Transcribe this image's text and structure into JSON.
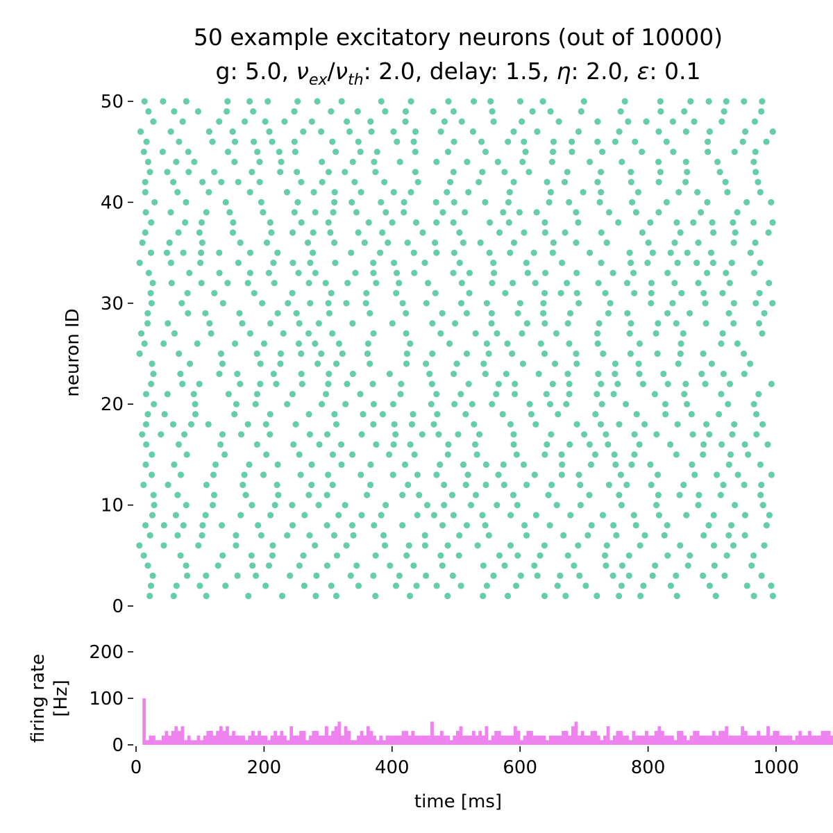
{
  "chart_data": [
    {
      "type": "scatter",
      "panel": "raster",
      "title_line1": "50 example excitatory neurons (out of 10000)",
      "title_line2": {
        "g": "g: 5.0, ",
        "nu": "ν",
        "ex": "ex",
        "slash": "/",
        "nu2": "ν",
        "th": "th",
        "rest1": ": 2.0, delay: 1.5, ",
        "eta": "η",
        "rest2": ": 2.0, ",
        "eps": "ε",
        "rest3": ": 0.1"
      },
      "ylabel": "neuron ID",
      "xlim": [
        0,
        1000
      ],
      "ylim": [
        0,
        50
      ],
      "yticks": [
        0,
        10,
        20,
        30,
        40,
        50
      ],
      "ytick_labels": [
        "0",
        "10",
        "20",
        "30",
        "40",
        "50"
      ],
      "neuron_ids": [
        1,
        50
      ],
      "approx_spike_rate_hz": 22,
      "marker_color": "#66cdaa"
    },
    {
      "type": "bar",
      "panel": "rate",
      "ylabel_line1": "firing rate",
      "ylabel_line2": "[Hz]",
      "xlabel": "time [ms]",
      "xlim": [
        0,
        1000
      ],
      "ylim": [
        0,
        200
      ],
      "xticks": [
        0,
        200,
        400,
        600,
        800,
        1000
      ],
      "xtick_labels": [
        "0",
        "200",
        "400",
        "600",
        "800",
        "1000"
      ],
      "yticks": [
        0,
        100,
        200
      ],
      "ytick_labels": [
        "0",
        "100",
        "200"
      ],
      "bin_width_ms": 5,
      "bin_start_ms": 10,
      "values": [
        100,
        10,
        20,
        20,
        10,
        10,
        20,
        30,
        20,
        30,
        40,
        30,
        40,
        10,
        20,
        10,
        10,
        20,
        10,
        20,
        30,
        30,
        20,
        30,
        40,
        30,
        40,
        20,
        30,
        20,
        20,
        20,
        10,
        20,
        30,
        20,
        30,
        20,
        20,
        10,
        20,
        30,
        20,
        30,
        20,
        10,
        40,
        20,
        20,
        30,
        30,
        10,
        20,
        30,
        30,
        20,
        20,
        40,
        20,
        30,
        40,
        50,
        20,
        40,
        30,
        10,
        10,
        20,
        30,
        20,
        40,
        30,
        20,
        10,
        20,
        10,
        20,
        20,
        20,
        20,
        20,
        30,
        30,
        20,
        30,
        20,
        20,
        20,
        20,
        20,
        50,
        20,
        20,
        30,
        20,
        20,
        10,
        20,
        30,
        40,
        20,
        20,
        20,
        30,
        20,
        30,
        20,
        40,
        10,
        20,
        30,
        30,
        20,
        20,
        20,
        20,
        40,
        30,
        10,
        20,
        30,
        30,
        20,
        20,
        20,
        20,
        10,
        20,
        20,
        20,
        20,
        30,
        30,
        20,
        40,
        50,
        20,
        30,
        20,
        20,
        30,
        30,
        20,
        10,
        20,
        40,
        10,
        20,
        30,
        30,
        20,
        20,
        10,
        30,
        20,
        20,
        20,
        30,
        20,
        20,
        30,
        40,
        30,
        20,
        20,
        20,
        10,
        30,
        30,
        20,
        10,
        20,
        30,
        30,
        20,
        20,
        20,
        20,
        30,
        20,
        30,
        30,
        40,
        20,
        20,
        20,
        20,
        40,
        30,
        20,
        20,
        20,
        30,
        20,
        20,
        40,
        20,
        30,
        30,
        20,
        20,
        20,
        20,
        10,
        20,
        30,
        20,
        20,
        30,
        20,
        20,
        20,
        30,
        30,
        30,
        20,
        20,
        20,
        30,
        20,
        30
      ],
      "bar_color": "#ee82ee"
    }
  ]
}
